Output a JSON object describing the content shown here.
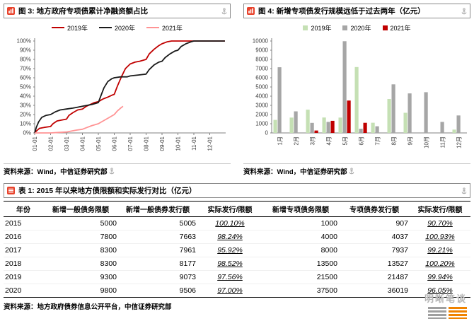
{
  "figures": [
    {
      "title": "图 3: 地方政府专项债累计净融资额占比",
      "source": "资料来源：Wind，中信证券研究部",
      "legend_style": "line"
    },
    {
      "title": "图 4: 新增专项债发行规模远低于过去两年（亿元）",
      "source": "资料来源：Wind，中信证券研究部",
      "legend_style": "box"
    }
  ],
  "table": {
    "title": "表 1: 2015 年以来地方债限额和实际发行对比（亿元）",
    "source": "资料来源：地方政府债券信息公开平台，中信证券研究部"
  },
  "watermark": {
    "text": "明晰笔谈"
  },
  "chart_data": [
    {
      "id": "fig3",
      "type": "line",
      "title": "地方政府专项债累计净融资额占比",
      "x_labels": [
        "01-01",
        "02-01",
        "03-01",
        "04-01",
        "05-01",
        "06-01",
        "07-01",
        "08-01",
        "09-01",
        "10-01",
        "11-01",
        "12-01"
      ],
      "x_range": [
        1,
        13
      ],
      "y_axis": {
        "min": 0,
        "max": 100,
        "step": 10,
        "suffix": "%"
      },
      "legend_position": "top",
      "grid": false,
      "series": [
        {
          "name": "2019年",
          "color": "#C00000",
          "points": [
            [
              1,
              0
            ],
            [
              1.1,
              2
            ],
            [
              1.3,
              5
            ],
            [
              1.6,
              6
            ],
            [
              2,
              7
            ],
            [
              2.15,
              10
            ],
            [
              2.4,
              13
            ],
            [
              2.7,
              14
            ],
            [
              3,
              15
            ],
            [
              3.15,
              19
            ],
            [
              3.4,
              22
            ],
            [
              3.7,
              25
            ],
            [
              4,
              26
            ],
            [
              4.25,
              29
            ],
            [
              4.5,
              31
            ],
            [
              4.75,
              33
            ],
            [
              5,
              34
            ],
            [
              5.3,
              37
            ],
            [
              5.6,
              39
            ],
            [
              5.85,
              41
            ],
            [
              6,
              42
            ],
            [
              6.2,
              51
            ],
            [
              6.45,
              61
            ],
            [
              6.7,
              70
            ],
            [
              7,
              75
            ],
            [
              7.3,
              77
            ],
            [
              7.6,
              78
            ],
            [
              8,
              80
            ],
            [
              8.2,
              86
            ],
            [
              8.5,
              91
            ],
            [
              8.8,
              95
            ],
            [
              9,
              97
            ],
            [
              9.3,
              99
            ],
            [
              9.6,
              100
            ],
            [
              10,
              100
            ],
            [
              10.5,
              100
            ],
            [
              11,
              100
            ],
            [
              11.5,
              100
            ],
            [
              12,
              100
            ],
            [
              12.95,
              100
            ]
          ]
        },
        {
          "name": "2020年",
          "color": "#1A1A1A",
          "points": [
            [
              1,
              0
            ],
            [
              1.1,
              6
            ],
            [
              1.25,
              12
            ],
            [
              1.45,
              17
            ],
            [
              1.7,
              19
            ],
            [
              2,
              20
            ],
            [
              2.3,
              23
            ],
            [
              2.6,
              25
            ],
            [
              3,
              26
            ],
            [
              3.4,
              27
            ],
            [
              3.7,
              28
            ],
            [
              4,
              29
            ],
            [
              4.3,
              30
            ],
            [
              4.6,
              31
            ],
            [
              5,
              33
            ],
            [
              5.15,
              40
            ],
            [
              5.35,
              49
            ],
            [
              5.6,
              56
            ],
            [
              5.85,
              59
            ],
            [
              6,
              60
            ],
            [
              6.4,
              61
            ],
            [
              6.8,
              61
            ],
            [
              7,
              62
            ],
            [
              7.5,
              63
            ],
            [
              8,
              64
            ],
            [
              8.2,
              69
            ],
            [
              8.5,
              74
            ],
            [
              8.8,
              77
            ],
            [
              9,
              78
            ],
            [
              9.2,
              82
            ],
            [
              9.5,
              86
            ],
            [
              9.8,
              89
            ],
            [
              10,
              90
            ],
            [
              10.2,
              94
            ],
            [
              10.5,
              97
            ],
            [
              10.8,
              99
            ],
            [
              11,
              100
            ],
            [
              11.5,
              100
            ],
            [
              12,
              100
            ],
            [
              12.95,
              100
            ]
          ]
        },
        {
          "name": "2021年",
          "color": "#FF9394",
          "points": [
            [
              1,
              0
            ],
            [
              1.5,
              0
            ],
            [
              2,
              0
            ],
            [
              2.5,
              0.5
            ],
            [
              3,
              1
            ],
            [
              3.3,
              2
            ],
            [
              3.6,
              3
            ],
            [
              4,
              4
            ],
            [
              4.3,
              6
            ],
            [
              4.6,
              8
            ],
            [
              5,
              10
            ],
            [
              5.2,
              12
            ],
            [
              5.5,
              15
            ],
            [
              5.8,
              18
            ],
            [
              6,
              20
            ],
            [
              6.2,
              24
            ],
            [
              6.4,
              27
            ],
            [
              6.55,
              29
            ]
          ]
        }
      ]
    },
    {
      "id": "fig4",
      "type": "bar",
      "title": "新增专项债发行规模远低于过去两年（亿元）",
      "categories": [
        "1月",
        "2月",
        "3月",
        "4月",
        "5月",
        "6月",
        "7月",
        "8月",
        "9月",
        "10月",
        "11月",
        "12月"
      ],
      "y_axis": {
        "min": 0,
        "max": 10000,
        "step": 1000,
        "suffix": ""
      },
      "legend_position": "top",
      "grid": false,
      "series": [
        {
          "name": "2019年",
          "color": "#C5E0B4",
          "values": [
            1412,
            1667,
            2532,
            1679,
            1672,
            7170,
            1107,
            3695,
            2195,
            0,
            0,
            358
          ]
        },
        {
          "name": "2020年",
          "color": "#A6A6A6",
          "values": [
            7148,
            2349,
            1094,
            1202,
            9980,
            457,
            722,
            5287,
            4303,
            4429,
            1200,
            1900
          ]
        },
        {
          "name": "2021年",
          "color": "#C00000",
          "values": [
            0,
            0,
            264,
            1316,
            3521,
            1100,
            0,
            0,
            0,
            0,
            0,
            0
          ]
        }
      ]
    },
    {
      "id": "table1",
      "type": "table",
      "columns": [
        "年份",
        "新增一般债务限额",
        "新增一般债券发行额",
        "实际发行/限额",
        "新增专项债务限额",
        "专项债券发行额",
        "实际发行/限额"
      ],
      "rows": [
        [
          "2015",
          "5000",
          "5005",
          "100.10%",
          "1000",
          "907",
          "90.70%"
        ],
        [
          "2016",
          "7800",
          "7663",
          "98.24%",
          "4000",
          "4037",
          "100.93%"
        ],
        [
          "2017",
          "8300",
          "7961",
          "95.92%",
          "8000",
          "7937",
          "99.21%"
        ],
        [
          "2018",
          "8300",
          "8177",
          "98.52%",
          "13500",
          "13527",
          "100.20%"
        ],
        [
          "2019",
          "9300",
          "9073",
          "97.56%",
          "21500",
          "21487",
          "99.94%"
        ],
        [
          "2020",
          "9800",
          "9506",
          "97.00%",
          "37500",
          "36019",
          "96.05%"
        ]
      ]
    }
  ]
}
